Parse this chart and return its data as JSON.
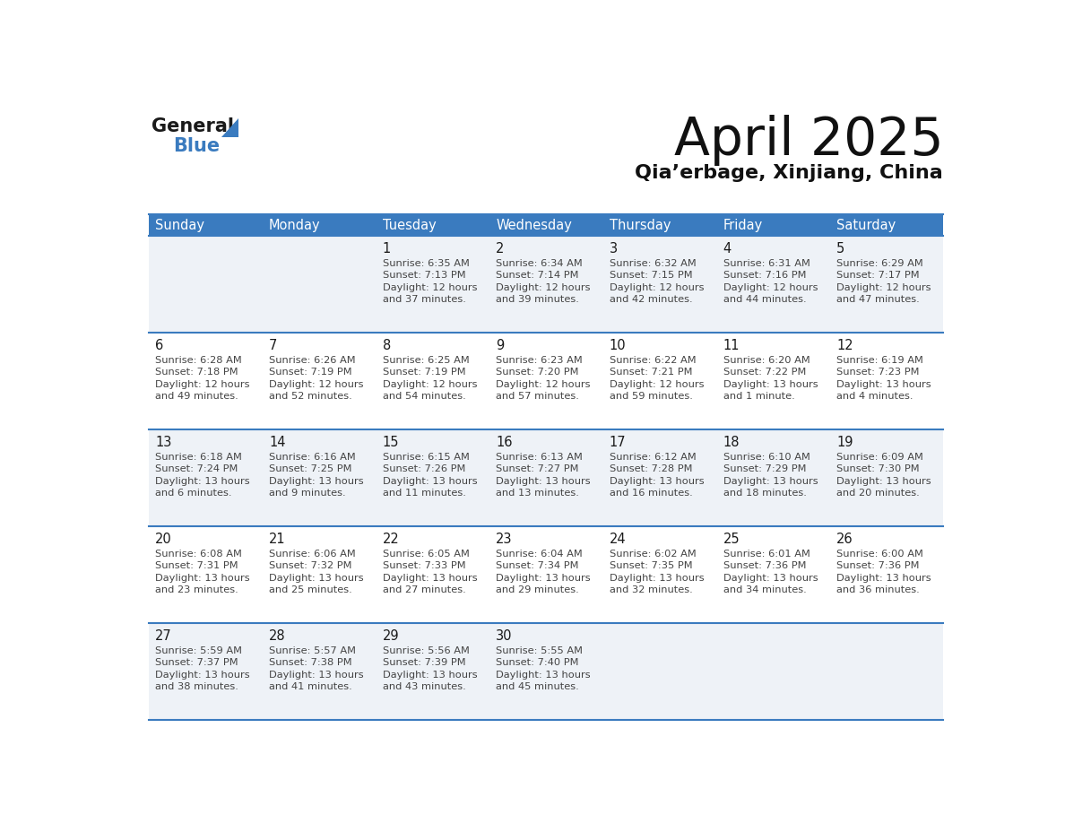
{
  "title": "April 2025",
  "subtitle": "Qia’erbage, Xinjiang, China",
  "header_bg": "#3a7bbf",
  "header_text_color": "#ffffff",
  "day_names": [
    "Sunday",
    "Monday",
    "Tuesday",
    "Wednesday",
    "Thursday",
    "Friday",
    "Saturday"
  ],
  "cell_bg_even": "#eef2f7",
  "cell_bg_odd": "#ffffff",
  "cell_border_color": "#3a7bbf",
  "date_color": "#1a1a1a",
  "info_color": "#444444",
  "days": [
    {
      "date": 1,
      "col": 2,
      "row": 0,
      "sunrise": "6:35 AM",
      "sunset": "7:13 PM",
      "daylight_line1": "12 hours",
      "daylight_line2": "and 37 minutes."
    },
    {
      "date": 2,
      "col": 3,
      "row": 0,
      "sunrise": "6:34 AM",
      "sunset": "7:14 PM",
      "daylight_line1": "12 hours",
      "daylight_line2": "and 39 minutes."
    },
    {
      "date": 3,
      "col": 4,
      "row": 0,
      "sunrise": "6:32 AM",
      "sunset": "7:15 PM",
      "daylight_line1": "12 hours",
      "daylight_line2": "and 42 minutes."
    },
    {
      "date": 4,
      "col": 5,
      "row": 0,
      "sunrise": "6:31 AM",
      "sunset": "7:16 PM",
      "daylight_line1": "12 hours",
      "daylight_line2": "and 44 minutes."
    },
    {
      "date": 5,
      "col": 6,
      "row": 0,
      "sunrise": "6:29 AM",
      "sunset": "7:17 PM",
      "daylight_line1": "12 hours",
      "daylight_line2": "and 47 minutes."
    },
    {
      "date": 6,
      "col": 0,
      "row": 1,
      "sunrise": "6:28 AM",
      "sunset": "7:18 PM",
      "daylight_line1": "12 hours",
      "daylight_line2": "and 49 minutes."
    },
    {
      "date": 7,
      "col": 1,
      "row": 1,
      "sunrise": "6:26 AM",
      "sunset": "7:19 PM",
      "daylight_line1": "12 hours",
      "daylight_line2": "and 52 minutes."
    },
    {
      "date": 8,
      "col": 2,
      "row": 1,
      "sunrise": "6:25 AM",
      "sunset": "7:19 PM",
      "daylight_line1": "12 hours",
      "daylight_line2": "and 54 minutes."
    },
    {
      "date": 9,
      "col": 3,
      "row": 1,
      "sunrise": "6:23 AM",
      "sunset": "7:20 PM",
      "daylight_line1": "12 hours",
      "daylight_line2": "and 57 minutes."
    },
    {
      "date": 10,
      "col": 4,
      "row": 1,
      "sunrise": "6:22 AM",
      "sunset": "7:21 PM",
      "daylight_line1": "12 hours",
      "daylight_line2": "and 59 minutes."
    },
    {
      "date": 11,
      "col": 5,
      "row": 1,
      "sunrise": "6:20 AM",
      "sunset": "7:22 PM",
      "daylight_line1": "13 hours",
      "daylight_line2": "and 1 minute."
    },
    {
      "date": 12,
      "col": 6,
      "row": 1,
      "sunrise": "6:19 AM",
      "sunset": "7:23 PM",
      "daylight_line1": "13 hours",
      "daylight_line2": "and 4 minutes."
    },
    {
      "date": 13,
      "col": 0,
      "row": 2,
      "sunrise": "6:18 AM",
      "sunset": "7:24 PM",
      "daylight_line1": "13 hours",
      "daylight_line2": "and 6 minutes."
    },
    {
      "date": 14,
      "col": 1,
      "row": 2,
      "sunrise": "6:16 AM",
      "sunset": "7:25 PM",
      "daylight_line1": "13 hours",
      "daylight_line2": "and 9 minutes."
    },
    {
      "date": 15,
      "col": 2,
      "row": 2,
      "sunrise": "6:15 AM",
      "sunset": "7:26 PM",
      "daylight_line1": "13 hours",
      "daylight_line2": "and 11 minutes."
    },
    {
      "date": 16,
      "col": 3,
      "row": 2,
      "sunrise": "6:13 AM",
      "sunset": "7:27 PM",
      "daylight_line1": "13 hours",
      "daylight_line2": "and 13 minutes."
    },
    {
      "date": 17,
      "col": 4,
      "row": 2,
      "sunrise": "6:12 AM",
      "sunset": "7:28 PM",
      "daylight_line1": "13 hours",
      "daylight_line2": "and 16 minutes."
    },
    {
      "date": 18,
      "col": 5,
      "row": 2,
      "sunrise": "6:10 AM",
      "sunset": "7:29 PM",
      "daylight_line1": "13 hours",
      "daylight_line2": "and 18 minutes."
    },
    {
      "date": 19,
      "col": 6,
      "row": 2,
      "sunrise": "6:09 AM",
      "sunset": "7:30 PM",
      "daylight_line1": "13 hours",
      "daylight_line2": "and 20 minutes."
    },
    {
      "date": 20,
      "col": 0,
      "row": 3,
      "sunrise": "6:08 AM",
      "sunset": "7:31 PM",
      "daylight_line1": "13 hours",
      "daylight_line2": "and 23 minutes."
    },
    {
      "date": 21,
      "col": 1,
      "row": 3,
      "sunrise": "6:06 AM",
      "sunset": "7:32 PM",
      "daylight_line1": "13 hours",
      "daylight_line2": "and 25 minutes."
    },
    {
      "date": 22,
      "col": 2,
      "row": 3,
      "sunrise": "6:05 AM",
      "sunset": "7:33 PM",
      "daylight_line1": "13 hours",
      "daylight_line2": "and 27 minutes."
    },
    {
      "date": 23,
      "col": 3,
      "row": 3,
      "sunrise": "6:04 AM",
      "sunset": "7:34 PM",
      "daylight_line1": "13 hours",
      "daylight_line2": "and 29 minutes."
    },
    {
      "date": 24,
      "col": 4,
      "row": 3,
      "sunrise": "6:02 AM",
      "sunset": "7:35 PM",
      "daylight_line1": "13 hours",
      "daylight_line2": "and 32 minutes."
    },
    {
      "date": 25,
      "col": 5,
      "row": 3,
      "sunrise": "6:01 AM",
      "sunset": "7:36 PM",
      "daylight_line1": "13 hours",
      "daylight_line2": "and 34 minutes."
    },
    {
      "date": 26,
      "col": 6,
      "row": 3,
      "sunrise": "6:00 AM",
      "sunset": "7:36 PM",
      "daylight_line1": "13 hours",
      "daylight_line2": "and 36 minutes."
    },
    {
      "date": 27,
      "col": 0,
      "row": 4,
      "sunrise": "5:59 AM",
      "sunset": "7:37 PM",
      "daylight_line1": "13 hours",
      "daylight_line2": "and 38 minutes."
    },
    {
      "date": 28,
      "col": 1,
      "row": 4,
      "sunrise": "5:57 AM",
      "sunset": "7:38 PM",
      "daylight_line1": "13 hours",
      "daylight_line2": "and 41 minutes."
    },
    {
      "date": 29,
      "col": 2,
      "row": 4,
      "sunrise": "5:56 AM",
      "sunset": "7:39 PM",
      "daylight_line1": "13 hours",
      "daylight_line2": "and 43 minutes."
    },
    {
      "date": 30,
      "col": 3,
      "row": 4,
      "sunrise": "5:55 AM",
      "sunset": "7:40 PM",
      "daylight_line1": "13 hours",
      "daylight_line2": "and 45 minutes."
    }
  ],
  "num_rows": 5,
  "num_cols": 7,
  "logo_general_color": "#1a1a1a",
  "logo_blue_color": "#3a7bbf",
  "logo_triangle_color": "#3a7bbf"
}
